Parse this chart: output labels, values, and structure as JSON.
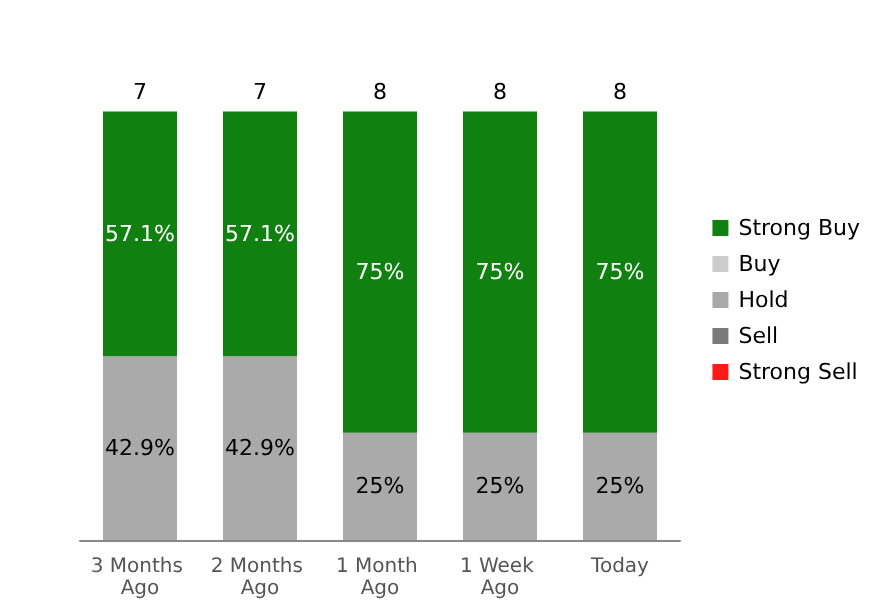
{
  "chart_data": {
    "type": "bar",
    "stacked": true,
    "categories": [
      "3 Months Ago",
      "2 Months Ago",
      "1 Month Ago",
      "1 Week Ago",
      "Today"
    ],
    "series": [
      {
        "name": "Strong Sell",
        "color": "#ff1a1a",
        "values": [
          null,
          null,
          null,
          null,
          null
        ]
      },
      {
        "name": "Sell",
        "color": "#7a7a7a",
        "values": [
          null,
          null,
          null,
          null,
          null
        ]
      },
      {
        "name": "Hold",
        "color": "#aaaaaa",
        "values": [
          42.9,
          42.9,
          25,
          25,
          25
        ],
        "value_labels": [
          "42.9%",
          "42.9%",
          "25%",
          "25%",
          "25%"
        ]
      },
      {
        "name": "Buy",
        "color": "#cccccc",
        "values": [
          null,
          null,
          null,
          null,
          null
        ]
      },
      {
        "name": "Strong Buy",
        "color": "#108010",
        "values": [
          57.1,
          57.1,
          75,
          75,
          75
        ],
        "value_labels": [
          "57.1%",
          "57.1%",
          "75%",
          "75%",
          "75%"
        ]
      }
    ],
    "annotations": [
      {
        "text": "7",
        "x": "3 Months Ago",
        "y": 100
      },
      {
        "text": "7",
        "x": "2 Months Ago",
        "y": 100
      },
      {
        "text": "8",
        "x": "1 Month Ago",
        "y": 100
      },
      {
        "text": "8",
        "x": "1 Week Ago",
        "y": 100
      },
      {
        "text": "8",
        "x": "Today",
        "y": 100
      }
    ],
    "legend": "right"
  }
}
